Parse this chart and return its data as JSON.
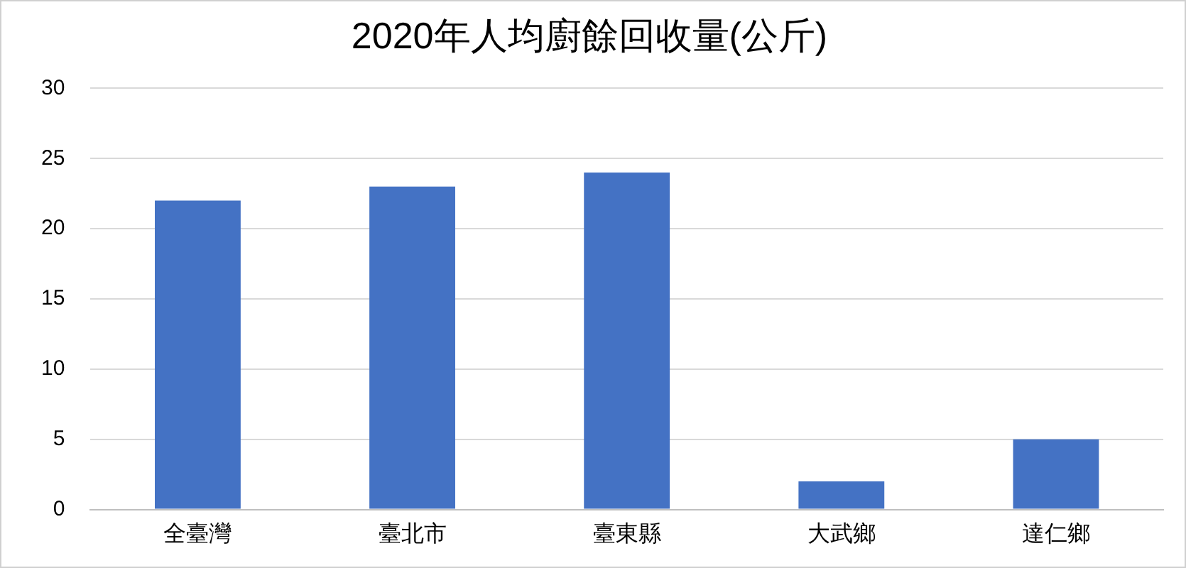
{
  "chart_data": {
    "type": "bar",
    "title": "2020年人均廚餘回收量(公斤)",
    "categories": [
      "全臺灣",
      "臺北市",
      "臺東縣",
      "大武鄉",
      "達仁鄉"
    ],
    "values": [
      22,
      23,
      24,
      2,
      5
    ],
    "color": "#4472c4",
    "ylim": [
      0,
      30
    ],
    "yticks": [
      0,
      5,
      10,
      15,
      20,
      25,
      30
    ],
    "grid": "y",
    "legend": false
  }
}
